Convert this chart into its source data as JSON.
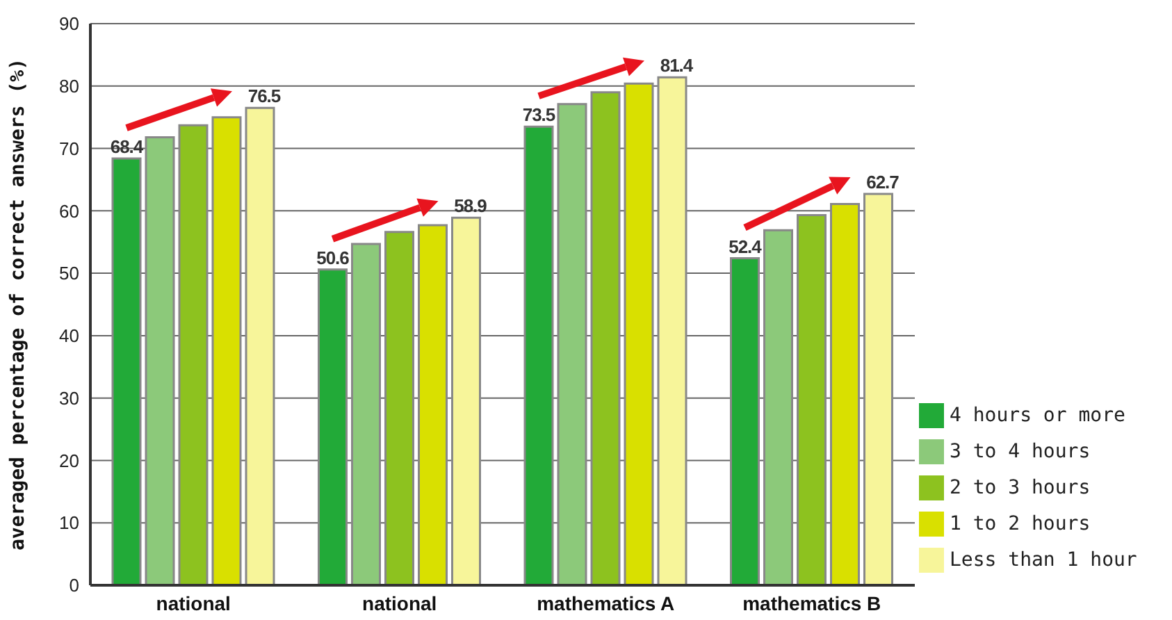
{
  "chart_data": {
    "type": "bar",
    "ylabel": "averaged percentage of correct answers (%)",
    "categories": [
      "national",
      "national",
      "mathematics A",
      "mathematics B"
    ],
    "series": [
      {
        "name": "4 hours or more",
        "color": "#22aa38",
        "values": [
          68.4,
          50.6,
          73.5,
          52.4
        ],
        "value_labels": [
          "68.4",
          "50.6",
          "73.5",
          "52.4"
        ]
      },
      {
        "name": "3 to 4 hours",
        "color": "#8cc97a",
        "values": [
          71.8,
          54.7,
          77.1,
          56.9
        ]
      },
      {
        "name": "2 to 3 hours",
        "color": "#8dc21f",
        "values": [
          73.7,
          56.6,
          79.0,
          59.3
        ]
      },
      {
        "name": "1 to 2 hours",
        "color": "#d9e000",
        "values": [
          75.0,
          57.7,
          80.4,
          61.1
        ]
      },
      {
        "name": "Less than 1 hour",
        "color": "#f7f59a",
        "values": [
          76.5,
          58.9,
          81.4,
          62.7
        ],
        "value_labels": [
          "76.5",
          "58.9",
          "81.4",
          "62.7"
        ]
      }
    ],
    "ylim": [
      0,
      90
    ],
    "yticks": [
      0,
      10,
      20,
      30,
      40,
      50,
      60,
      70,
      80,
      90
    ],
    "grid": "y",
    "legend": "bottom right"
  }
}
